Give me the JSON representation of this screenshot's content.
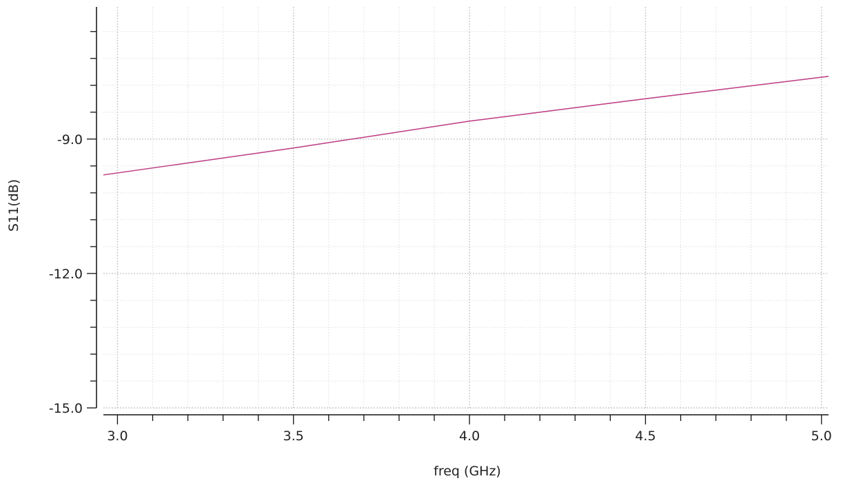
{
  "chart_data": {
    "type": "line",
    "xlabel": "freq (GHz)",
    "ylabel": "S11(dB)",
    "xlim": [
      2.96,
      5.02
    ],
    "ylim": [
      -15.0,
      -6.05
    ],
    "x_ticks": [
      {
        "value": 3.0,
        "label": "3.0"
      },
      {
        "value": 3.5,
        "label": "3.5"
      },
      {
        "value": 4.0,
        "label": "4.0"
      },
      {
        "value": 4.5,
        "label": "4.5"
      },
      {
        "value": 5.0,
        "label": "5.0"
      }
    ],
    "y_ticks": [
      {
        "value": -9.0,
        "label": "-9.0"
      },
      {
        "value": -12.0,
        "label": "-12.0"
      },
      {
        "value": -15.0,
        "label": "-15.0"
      }
    ],
    "x_minor_step": 0.1,
    "y_minor_step": 0.6,
    "grid": true,
    "series": [
      {
        "color": "#c0448a",
        "x": [
          2.96,
          3.5,
          4.0,
          4.5,
          5.02
        ],
        "y": [
          -9.8,
          -9.2,
          -8.6,
          -8.1,
          -7.6
        ]
      }
    ]
  }
}
